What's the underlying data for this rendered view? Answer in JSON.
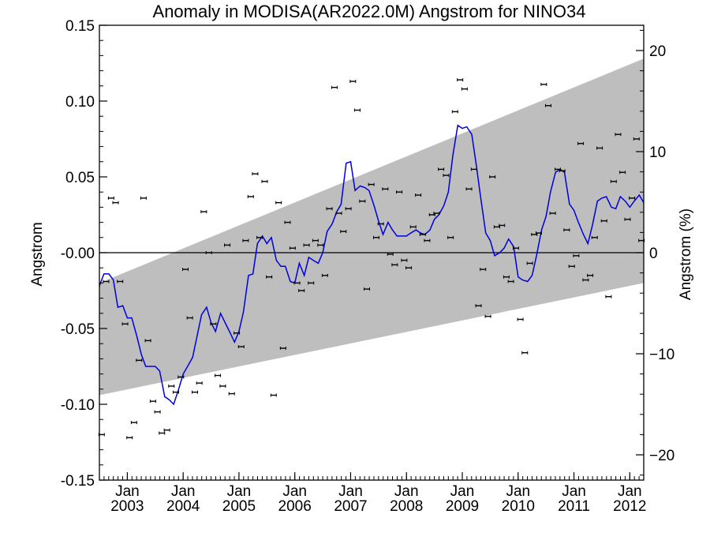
{
  "chart_data": {
    "type": "scatter",
    "title": "Anomaly in MODISA(AR2022.0M) Angstrom for NINO34",
    "ylabel": "Angstrom",
    "y2label": "Angstrom (%)",
    "xlabel": "",
    "xlim": [
      2002.5,
      2012.25
    ],
    "ylim": [
      -0.15,
      0.15
    ],
    "y2lim": [
      -22.5,
      22.5
    ],
    "yticks": [
      {
        "value": 0.15,
        "label": "0.15"
      },
      {
        "value": 0.1,
        "label": "0.10"
      },
      {
        "value": 0.05,
        "label": "0.05"
      },
      {
        "value": 0.0,
        "label": "-0.00"
      },
      {
        "value": -0.05,
        "label": "-0.05"
      },
      {
        "value": -0.1,
        "label": "-0.10"
      },
      {
        "value": -0.15,
        "label": "-0.15"
      }
    ],
    "y2ticks": [
      {
        "value": 20,
        "label": "20"
      },
      {
        "value": 10,
        "label": "10"
      },
      {
        "value": 0,
        "label": "0"
      },
      {
        "value": -10,
        "label": "−10"
      },
      {
        "value": -20,
        "label": "−20"
      }
    ],
    "xticks": [
      {
        "value": 2003.0,
        "label_top": "Jan",
        "label_bottom": "2003"
      },
      {
        "value": 2004.0,
        "label_top": "Jan",
        "label_bottom": "2004"
      },
      {
        "value": 2005.0,
        "label_top": "Jan",
        "label_bottom": "2005"
      },
      {
        "value": 2006.0,
        "label_top": "Jan",
        "label_bottom": "2006"
      },
      {
        "value": 2007.0,
        "label_top": "Jan",
        "label_bottom": "2007"
      },
      {
        "value": 2008.0,
        "label_top": "Jan",
        "label_bottom": "2008"
      },
      {
        "value": 2009.0,
        "label_top": "Jan",
        "label_bottom": "2009"
      },
      {
        "value": 2010.0,
        "label_top": "Jan",
        "label_bottom": "2010"
      },
      {
        "value": 2011.0,
        "label_top": "Jan",
        "label_bottom": "2011"
      },
      {
        "value": 2012.0,
        "label_top": "Jan",
        "label_bottom": "2012"
      }
    ],
    "trend_band": {
      "start_x": 2002.5,
      "end_x": 2012.25,
      "lower_start": -0.094,
      "lower_end": -0.02,
      "upper_start": -0.02,
      "upper_end": 0.128,
      "color": "#bebebe"
    },
    "zero_line": 0.0,
    "colors": {
      "smooth_line": "#0000dd",
      "points": "#000000"
    },
    "series": [
      {
        "type": "scatter_errorbar",
        "x": [
          2002.54,
          2002.62,
          2002.71,
          2002.79,
          2002.87,
          2002.96,
          2003.04,
          2003.12,
          2003.21,
          2003.29,
          2003.37,
          2003.46,
          2003.54,
          2003.62,
          2003.71,
          2003.79,
          2003.87,
          2003.96,
          2004.04,
          2004.12,
          2004.21,
          2004.29,
          2004.37,
          2004.46,
          2004.54,
          2004.62,
          2004.71,
          2004.79,
          2004.87,
          2004.96,
          2005.04,
          2005.12,
          2005.21,
          2005.29,
          2005.37,
          2005.46,
          2005.54,
          2005.62,
          2005.71,
          2005.79,
          2005.87,
          2005.96,
          2006.04,
          2006.12,
          2006.21,
          2006.29,
          2006.37,
          2006.46,
          2006.54,
          2006.62,
          2006.71,
          2006.79,
          2006.87,
          2006.96,
          2007.04,
          2007.12,
          2007.21,
          2007.29,
          2007.37,
          2007.46,
          2007.54,
          2007.62,
          2007.71,
          2007.79,
          2007.87,
          2007.96,
          2008.04,
          2008.12,
          2008.21,
          2008.29,
          2008.37,
          2008.46,
          2008.54,
          2008.62,
          2008.71,
          2008.79,
          2008.87,
          2008.96,
          2009.04,
          2009.12,
          2009.21,
          2009.29,
          2009.37,
          2009.46,
          2009.54,
          2009.62,
          2009.71,
          2009.79,
          2009.87,
          2009.96,
          2010.04,
          2010.12,
          2010.21,
          2010.29,
          2010.37,
          2010.46,
          2010.54,
          2010.62,
          2010.71,
          2010.79,
          2010.87,
          2010.96,
          2011.04,
          2011.12,
          2011.21,
          2011.29,
          2011.37,
          2011.46,
          2011.54,
          2011.62,
          2011.71,
          2011.79,
          2011.87,
          2011.96,
          2012.04,
          2012.12,
          2012.21
        ],
        "y": [
          -0.12,
          -0.019,
          0.036,
          0.033,
          -0.019,
          -0.047,
          -0.122,
          -0.112,
          -0.071,
          0.036,
          -0.058,
          -0.098,
          -0.105,
          -0.119,
          -0.117,
          -0.088,
          -0.092,
          -0.082,
          -0.011,
          -0.043,
          -0.092,
          -0.086,
          0.027,
          0.0,
          -0.047,
          -0.081,
          -0.088,
          0.005,
          -0.093,
          -0.053,
          -0.062,
          0.008,
          0.037,
          0.052,
          0.01,
          0.047,
          -0.016,
          -0.094,
          0.033,
          -0.063,
          0.02,
          0.003,
          -0.02,
          -0.025,
          0.005,
          -0.02,
          0.008,
          0.005,
          -0.015,
          0.029,
          0.109,
          0.026,
          0.014,
          0.029,
          0.113,
          0.094,
          0.034,
          -0.024,
          0.045,
          0.01,
          0.019,
          0.042,
          -0.001,
          -0.008,
          0.04,
          -0.005,
          -0.01,
          0.017,
          0.038,
          0.012,
          0.008,
          0.025,
          0.026,
          0.055,
          0.051,
          0.01,
          0.093,
          0.114,
          0.108,
          0.042,
          0.055,
          -0.035,
          -0.011,
          -0.042,
          0.05,
          0.017,
          0.018,
          -0.016,
          -0.019,
          0.003,
          -0.044,
          -0.066,
          -0.007,
          0.012,
          0.013,
          0.111,
          0.097,
          0.026,
          0.055,
          0.054,
          0.015,
          -0.009,
          -0.002,
          0.072,
          -0.018,
          -0.015,
          0.01,
          0.069,
          0.021,
          -0.029,
          0.047,
          0.078,
          0.053,
          0.022,
          0.036,
          0.075,
          0.008
        ]
      },
      {
        "type": "line",
        "x": [
          2002.5,
          2002.58,
          2002.67,
          2002.75,
          2002.83,
          2002.92,
          2003.0,
          2003.08,
          2003.17,
          2003.25,
          2003.33,
          2003.42,
          2003.5,
          2003.58,
          2003.67,
          2003.75,
          2003.83,
          2003.92,
          2004.0,
          2004.08,
          2004.17,
          2004.25,
          2004.33,
          2004.42,
          2004.5,
          2004.58,
          2004.67,
          2004.75,
          2004.83,
          2004.92,
          2005.0,
          2005.08,
          2005.17,
          2005.25,
          2005.33,
          2005.42,
          2005.5,
          2005.58,
          2005.67,
          2005.75,
          2005.83,
          2005.92,
          2006.0,
          2006.08,
          2006.17,
          2006.25,
          2006.33,
          2006.42,
          2006.5,
          2006.58,
          2006.67,
          2006.75,
          2006.83,
          2006.92,
          2007.0,
          2007.08,
          2007.17,
          2007.25,
          2007.33,
          2007.42,
          2007.5,
          2007.58,
          2007.67,
          2007.75,
          2007.83,
          2007.92,
          2008.0,
          2008.08,
          2008.17,
          2008.25,
          2008.33,
          2008.42,
          2008.5,
          2008.58,
          2008.67,
          2008.75,
          2008.83,
          2008.92,
          2009.0,
          2009.08,
          2009.17,
          2009.25,
          2009.33,
          2009.42,
          2009.5,
          2009.58,
          2009.67,
          2009.75,
          2009.83,
          2009.92,
          2010.0,
          2010.08,
          2010.17,
          2010.25,
          2010.33,
          2010.42,
          2010.5,
          2010.58,
          2010.67,
          2010.75,
          2010.83,
          2010.92,
          2011.0,
          2011.08,
          2011.17,
          2011.25,
          2011.33,
          2011.42,
          2011.5,
          2011.58,
          2011.67,
          2011.75,
          2011.83,
          2011.92,
          2012.0,
          2012.08,
          2012.17,
          2012.25
        ],
        "y": [
          -0.022,
          -0.014,
          -0.014,
          -0.018,
          -0.036,
          -0.035,
          -0.043,
          -0.043,
          -0.055,
          -0.067,
          -0.075,
          -0.075,
          -0.075,
          -0.078,
          -0.095,
          -0.097,
          -0.1,
          -0.09,
          -0.08,
          -0.075,
          -0.069,
          -0.055,
          -0.041,
          -0.036,
          -0.046,
          -0.052,
          -0.04,
          -0.046,
          -0.052,
          -0.059,
          -0.052,
          -0.039,
          -0.015,
          -0.014,
          0.006,
          0.011,
          0.006,
          0.01,
          -0.005,
          -0.009,
          -0.009,
          -0.019,
          -0.02,
          -0.007,
          -0.015,
          -0.003,
          -0.005,
          -0.007,
          0.0,
          0.014,
          0.019,
          0.027,
          0.032,
          0.059,
          0.06,
          0.041,
          0.044,
          0.043,
          0.041,
          0.031,
          0.021,
          0.012,
          0.02,
          0.015,
          0.011,
          0.011,
          0.011,
          0.013,
          0.015,
          0.013,
          0.012,
          0.015,
          0.022,
          0.025,
          0.031,
          0.04,
          0.064,
          0.084,
          0.082,
          0.083,
          0.078,
          0.058,
          0.036,
          0.013,
          0.008,
          -0.002,
          0.0,
          0.003,
          0.009,
          0.004,
          -0.016,
          -0.018,
          -0.019,
          -0.015,
          -0.002,
          0.015,
          0.024,
          0.04,
          0.053,
          0.055,
          0.053,
          0.032,
          0.028,
          0.02,
          0.012,
          0.006,
          0.018,
          0.034,
          0.036,
          0.037,
          0.03,
          0.029,
          0.037,
          0.034,
          0.03,
          0.034,
          0.038,
          0.033
        ]
      }
    ]
  }
}
